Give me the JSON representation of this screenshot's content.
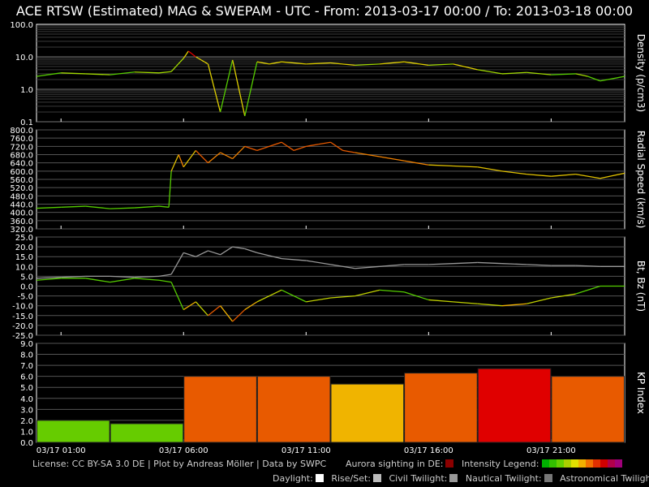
{
  "title": "ACE RTSW (Estimated) MAG & SWEPAM - UTC - From: 2013-03-17 00:00  /  To: 2013-03-18 00:00",
  "footer": {
    "license": "License: CC BY-SA 3.0 DE | Plot by Andreas Möller | Data by SWPC",
    "aurora": "Aurora sighting in DE:",
    "intensity": "Intensity Legend:",
    "daylight": "Daylight:",
    "riseset": "Rise/Set:",
    "civil": "Civil Twilight:",
    "nautical": "Nautical Twilight:",
    "astronomical": "Astronomical Twilight:"
  },
  "colors": {
    "aurora": "#8b0000",
    "intensity": [
      "#00b000",
      "#33c000",
      "#66d000",
      "#aad000",
      "#e0e000",
      "#f0b000",
      "#f07000",
      "#e03000",
      "#d00000",
      "#b0004a",
      "#a0007a"
    ],
    "daylight": "#ffffff",
    "riseset": "#bbbbbb",
    "civil": "#999999",
    "nautical": "#777777",
    "astronomical": "#444444"
  },
  "chart_data": [
    {
      "type": "line",
      "ylabel": "Density (p/cm3)",
      "scale": "log",
      "ylim": [
        0.1,
        100
      ],
      "yticks": [
        "100.0",
        "10.0",
        "1.0",
        "0.1"
      ],
      "x_hours": [
        0,
        1,
        2,
        3,
        4,
        5,
        5.5,
        6,
        6.2,
        6.5,
        7,
        7.5,
        8,
        8.5,
        9,
        9.5,
        10,
        11,
        12,
        13,
        14,
        15,
        16,
        17,
        18,
        19,
        20,
        21,
        22,
        22.5,
        23,
        24
      ],
      "values": [
        2.5,
        3.2,
        3.0,
        2.8,
        3.4,
        3.2,
        3.5,
        9,
        15,
        10,
        6,
        0.2,
        8,
        0.15,
        7,
        6,
        7,
        6,
        6.5,
        5.5,
        6,
        7,
        5.5,
        6,
        4,
        3,
        3.3,
        2.8,
        3,
        2.5,
        1.8,
        2.5
      ]
    },
    {
      "type": "line",
      "ylabel": "Radial Speed (km/s)",
      "ylim": [
        320,
        800
      ],
      "yticks": [
        "800.0",
        "760.0",
        "720.0",
        "680.0",
        "640.0",
        "600.0",
        "560.0",
        "520.0",
        "480.0",
        "440.0",
        "400.0",
        "360.0",
        "320.0"
      ],
      "x_hours": [
        0,
        1,
        2,
        3,
        4,
        5,
        5.4,
        5.5,
        5.8,
        6,
        6.5,
        7,
        7.5,
        8,
        8.5,
        9,
        10,
        10.5,
        11,
        11.5,
        12,
        12.5,
        13,
        14,
        15,
        16,
        17,
        18,
        19,
        20,
        21,
        22,
        23,
        24
      ],
      "values": [
        420,
        425,
        430,
        418,
        422,
        430,
        425,
        600,
        680,
        620,
        700,
        640,
        690,
        660,
        720,
        700,
        740,
        700,
        720,
        730,
        740,
        700,
        690,
        670,
        650,
        630,
        625,
        620,
        600,
        585,
        575,
        585,
        565,
        590
      ]
    },
    {
      "type": "line",
      "ylabel": "Bt, Bz (nT)",
      "ylim": [
        -25,
        25
      ],
      "yticks": [
        "25.0",
        "20.0",
        "15.0",
        "10.0",
        "5.0",
        "0.0",
        "-5.0",
        "-10.0",
        "-15.0",
        "-20.0",
        "-25.0"
      ],
      "series": [
        {
          "name": "Bt",
          "x_hours": [
            0,
            1,
            2,
            3,
            4,
            5,
            5.5,
            6,
            6.5,
            7,
            7.5,
            8,
            8.5,
            9,
            10,
            11,
            12,
            13,
            14,
            15,
            16,
            17,
            18,
            19,
            20,
            21,
            22,
            23,
            24
          ],
          "values": [
            4,
            4.5,
            5,
            5,
            4.5,
            5,
            6,
            17,
            15,
            18,
            16,
            20,
            19,
            17,
            14,
            13,
            11,
            9,
            10,
            11,
            11,
            11.5,
            12,
            11.5,
            11,
            10.5,
            10.5,
            10,
            10
          ]
        },
        {
          "name": "Bz",
          "x_hours": [
            0,
            1,
            2,
            3,
            4,
            5,
            5.5,
            6,
            6.5,
            7,
            7.5,
            8,
            8.5,
            9,
            10,
            11,
            12,
            13,
            14,
            15,
            16,
            17,
            18,
            19,
            20,
            21,
            22,
            23,
            24
          ],
          "values": [
            3,
            4,
            4,
            2,
            4,
            3,
            2,
            -12,
            -8,
            -15,
            -10,
            -18,
            -12,
            -8,
            -2,
            -8,
            -6,
            -5,
            -2,
            -3,
            -7,
            -8,
            -9,
            -10,
            -9,
            -6,
            -4,
            0,
            0
          ]
        }
      ]
    },
    {
      "type": "bar",
      "ylabel": "KP Index",
      "ylim": [
        0,
        9
      ],
      "yticks": [
        "9.0",
        "8.0",
        "7.0",
        "6.0",
        "5.0",
        "4.0",
        "3.0",
        "2.0",
        "1.0",
        "0.0"
      ],
      "x_start_hours": [
        0,
        3,
        6,
        9,
        12,
        15,
        18,
        21
      ],
      "values": [
        2.0,
        1.7,
        6.0,
        6.0,
        5.3,
        6.3,
        6.7,
        6.0
      ],
      "bar_colors": [
        "#66cc00",
        "#66cc00",
        "#e85a00",
        "#e85a00",
        "#f0b400",
        "#e85a00",
        "#e00000",
        "#e85a00"
      ]
    }
  ],
  "xticks": [
    "03/17 01:00",
    "03/17 06:00",
    "03/17 11:00",
    "03/17 16:00",
    "03/17 21:00"
  ],
  "xtick_hours": [
    1,
    6,
    11,
    16,
    21
  ]
}
